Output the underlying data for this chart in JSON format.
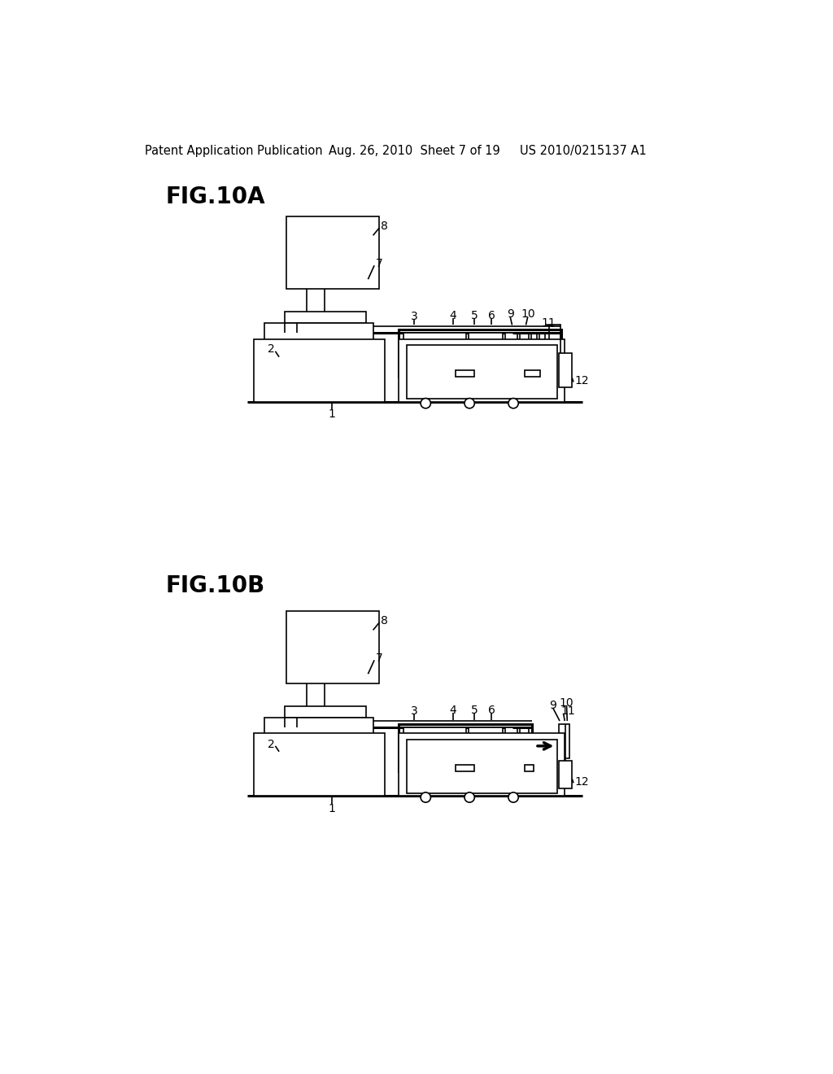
{
  "bg_color": "#ffffff",
  "header_left": "Patent Application Publication",
  "header_center": "Aug. 26, 2010  Sheet 7 of 19",
  "header_right": "US 2010/0215137 A1",
  "fig_a_label": "FIG.10A",
  "fig_b_label": "FIG.10B",
  "line_color": "#000000",
  "lw": 1.2,
  "tlw": 2.2
}
